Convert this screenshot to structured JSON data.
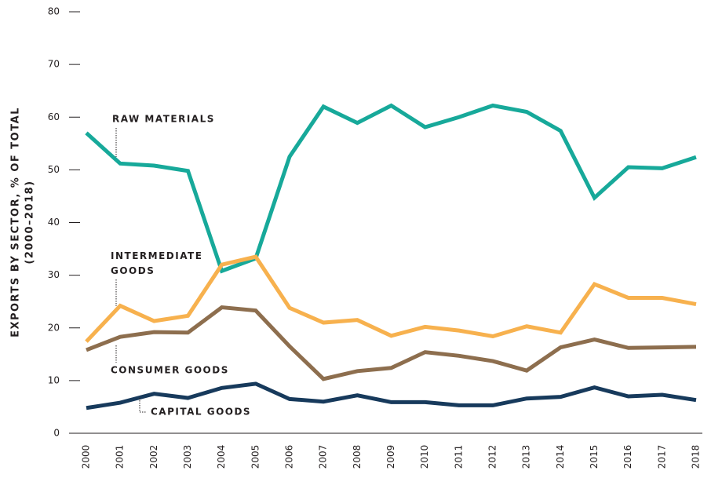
{
  "chart_data": {
    "type": "line",
    "ylabel": [
      "EXPORTS BY SECTOR, % OF TOTAL",
      "(2000–2018)"
    ],
    "categories": [
      "2000",
      "2001",
      "2002",
      "2003",
      "2004",
      "2005",
      "2006",
      "2007",
      "2008",
      "2009",
      "2010",
      "2011",
      "2012",
      "2013",
      "2014",
      "2015",
      "2016",
      "2017",
      "2018"
    ],
    "series": [
      {
        "name": "RAW MATERIALS",
        "color": "#17a99a",
        "values": [
          57,
          51.2,
          50.8,
          49.8,
          30.8,
          33.2,
          52.5,
          62,
          58.9,
          62.2,
          58.1,
          60,
          62.2,
          61,
          57.4,
          44.7,
          50.5,
          50.3,
          52.4
        ]
      },
      {
        "name": "INTERMEDIATE GOODS",
        "color": "#f7b14e",
        "values": [
          17.4,
          24.2,
          21.3,
          22.3,
          32,
          33.5,
          23.8,
          21,
          21.5,
          18.5,
          20.2,
          19.5,
          18.4,
          20.3,
          19.1,
          28.3,
          25.7,
          25.7,
          24.5
        ]
      },
      {
        "name": "CONSUMER GOODS",
        "color": "#8d6e4e",
        "values": [
          15.8,
          18.3,
          19.2,
          19.1,
          23.9,
          23.3,
          16.5,
          10.3,
          11.8,
          12.4,
          15.4,
          14.7,
          13.7,
          11.9,
          16.3,
          17.8,
          16.2,
          16.3,
          16.4
        ]
      },
      {
        "name": "CAPITAL GOODS",
        "color": "#173a5c",
        "values": [
          4.8,
          5.8,
          7.5,
          6.7,
          8.6,
          9.4,
          6.5,
          6,
          7.2,
          5.9,
          5.9,
          5.3,
          5.3,
          6.6,
          6.9,
          8.7,
          7,
          7.3,
          6.3
        ]
      }
    ],
    "ylim": [
      0,
      80
    ],
    "yticks": [
      0,
      10,
      20,
      30,
      40,
      50,
      60,
      70,
      80
    ],
    "grid": false
  }
}
